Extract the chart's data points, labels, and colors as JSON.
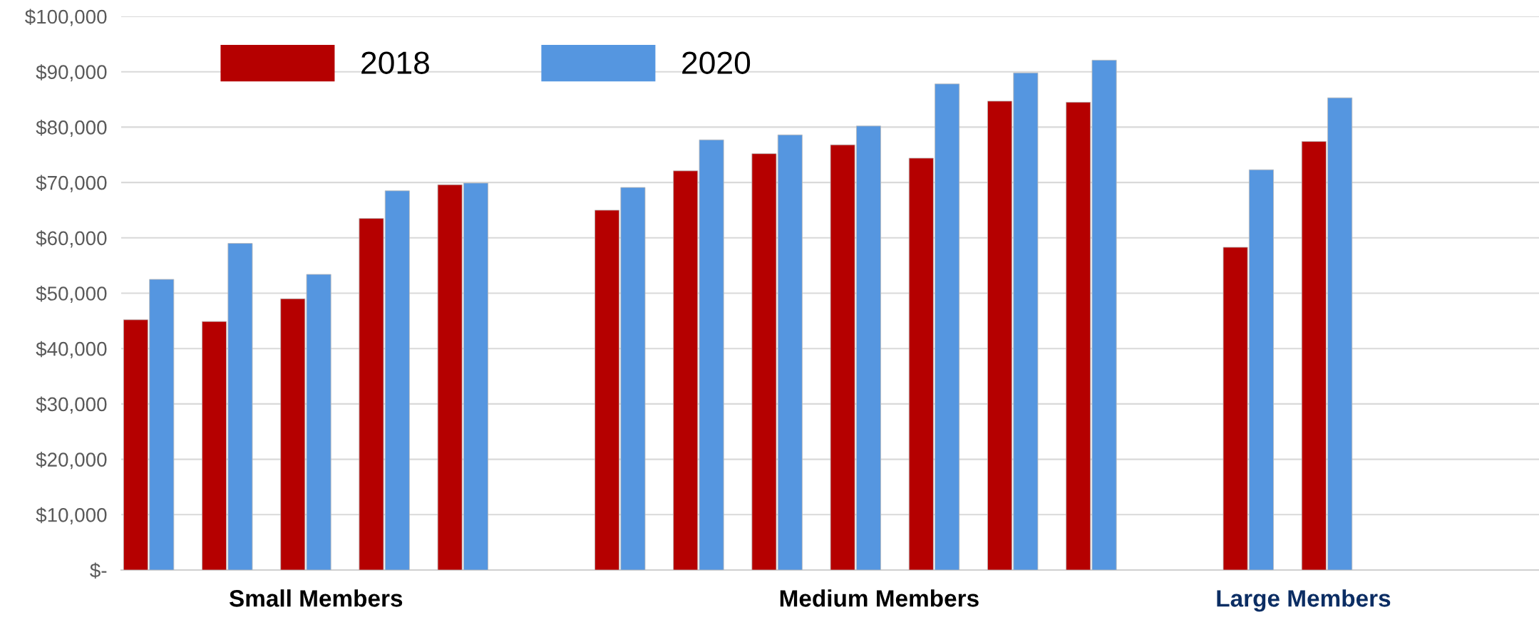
{
  "chart_data": {
    "type": "bar",
    "categories": [
      null,
      null,
      null,
      null,
      null,
      null,
      null,
      null,
      null,
      null,
      null,
      null,
      null,
      null,
      null,
      null,
      null,
      null
    ],
    "series": [
      {
        "name": "2018",
        "color": "#b50000",
        "values": [
          45200,
          44900,
          49000,
          63500,
          69600,
          null,
          65000,
          72100,
          75200,
          76800,
          74400,
          84700,
          84500,
          null,
          58300,
          77400,
          null,
          null
        ]
      },
      {
        "name": "2020",
        "color": "#5596e0",
        "values": [
          52500,
          59000,
          53400,
          68500,
          69900,
          null,
          69100,
          77700,
          78600,
          80200,
          87800,
          89800,
          92100,
          null,
          72300,
          85300,
          null,
          null
        ]
      }
    ],
    "ylim": [
      0,
      100000
    ],
    "yticks": [
      {
        "value": 0,
        "label": "$-"
      },
      {
        "value": 10000,
        "label": "$10,000"
      },
      {
        "value": 20000,
        "label": "$20,000"
      },
      {
        "value": 30000,
        "label": "$30,000"
      },
      {
        "value": 40000,
        "label": "$40,000"
      },
      {
        "value": 50000,
        "label": "$50,000"
      },
      {
        "value": 60000,
        "label": "$60,000"
      },
      {
        "value": 70000,
        "label": "$70,000"
      },
      {
        "value": 80000,
        "label": "$80,000"
      },
      {
        "value": 90000,
        "label": "$90,000"
      },
      {
        "value": 100000,
        "label": "$100,000"
      }
    ],
    "annotations": [
      "Small Members",
      "Medium Members",
      "Large Members"
    ],
    "grid": "y",
    "legend": "top left"
  }
}
